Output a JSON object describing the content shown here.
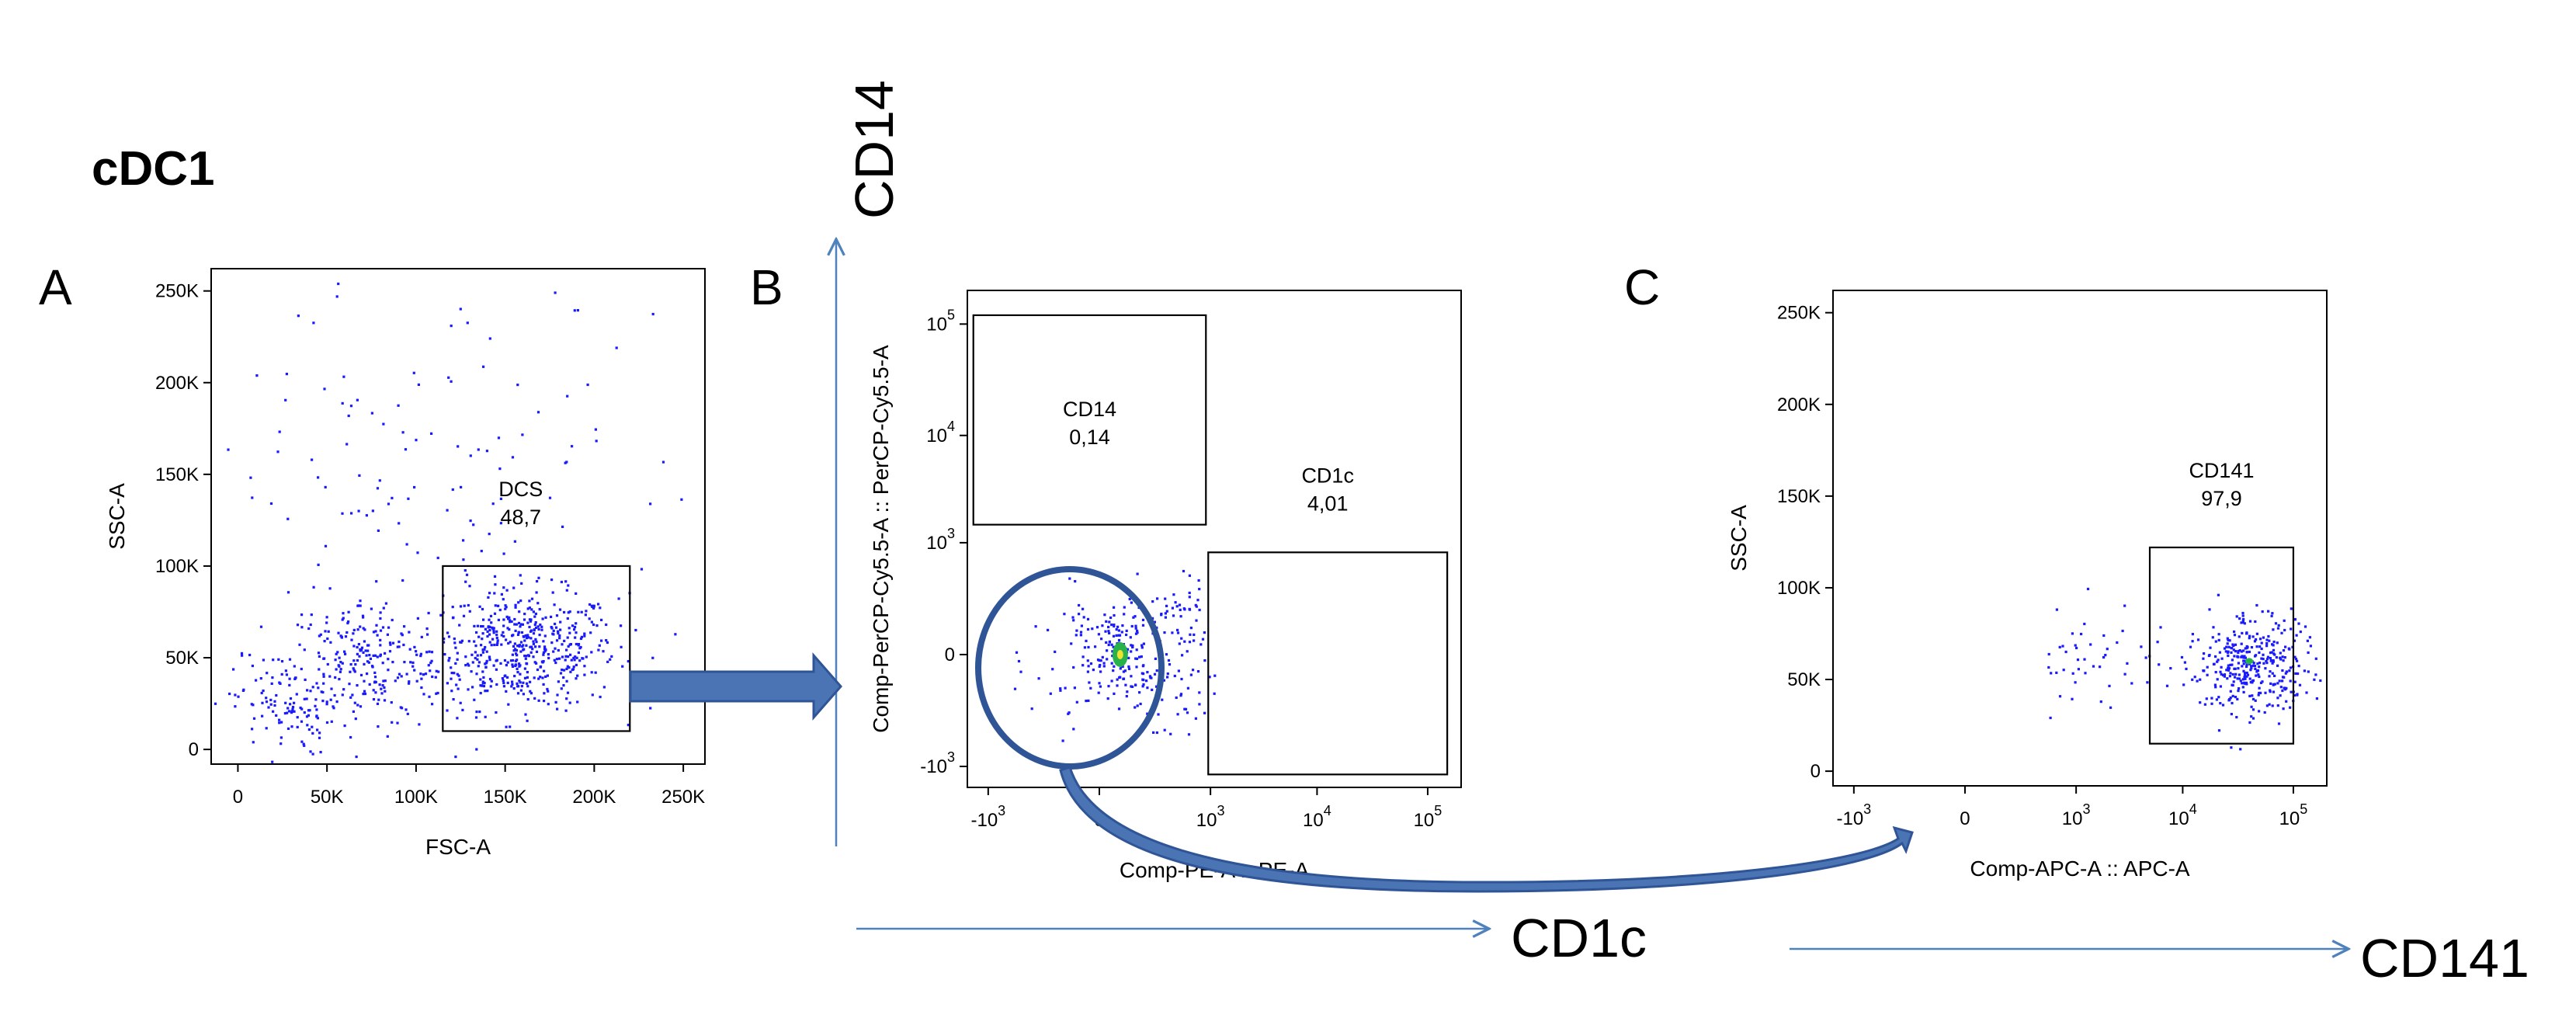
{
  "figure_title": "cDC1",
  "colors": {
    "dot": "#1a1aff",
    "dense": "#2ab24a",
    "core": "#f0e030",
    "arrow_fill": "#4a74b4",
    "arrow_stroke": "#2f5597",
    "axis_arrow": "#4f81bd",
    "circle": "#2f5597"
  },
  "big_axis_labels": {
    "cd14": "CD14",
    "cd1c": "CD1c",
    "cd141": "CD141"
  },
  "chart_data": [
    {
      "panel_letter": "A",
      "type": "scatter",
      "xlabel": "FSC-A",
      "ylabel": "SSC-A",
      "xlim": [
        -15000,
        262144
      ],
      "ylim": [
        -8000,
        262144
      ],
      "x_ticks": [
        {
          "v": 0,
          "label": "0"
        },
        {
          "v": 50000,
          "label": "50K"
        },
        {
          "v": 100000,
          "label": "100K"
        },
        {
          "v": 150000,
          "label": "150K"
        },
        {
          "v": 200000,
          "label": "200K"
        },
        {
          "v": 250000,
          "label": "250K"
        }
      ],
      "y_ticks": [
        {
          "v": 0,
          "label": "0"
        },
        {
          "v": 50000,
          "label": "50K"
        },
        {
          "v": 100000,
          "label": "100K"
        },
        {
          "v": 150000,
          "label": "150K"
        },
        {
          "v": 200000,
          "label": "200K"
        },
        {
          "v": 250000,
          "label": "250K"
        }
      ],
      "gates": [
        {
          "name": "DCS",
          "percent": "48,7",
          "x": [
            115000,
            220000
          ],
          "y": [
            10000,
            100000
          ]
        }
      ],
      "populations": [
        {
          "cx": 160000,
          "cy": 55000,
          "sx": 26000,
          "sy": 16000,
          "n": 520
        },
        {
          "cx": 70000,
          "cy": 48000,
          "sx": 22000,
          "sy": 18000,
          "n": 230
        },
        {
          "cx": 25000,
          "cy": 25000,
          "sx": 14000,
          "sy": 14000,
          "n": 110
        },
        {
          "cx": 110000,
          "cy": 140000,
          "sx": 80000,
          "sy": 60000,
          "n": 150
        }
      ]
    },
    {
      "panel_letter": "B",
      "type": "scatter",
      "xlabel": "Comp-PE-A :: PE-A",
      "ylabel": "Comp-PerCP-Cy5.5-A :: PerCP-Cy5.5-A",
      "scale": "biexponential",
      "xlim": [
        -1600,
        200000
      ],
      "ylim": [
        -1600,
        200000
      ],
      "x_ticks": [
        {
          "v": -1000,
          "base": "-10",
          "exp": "3"
        },
        {
          "v": 0,
          "base": "0",
          "exp": ""
        },
        {
          "v": 1000,
          "base": "10",
          "exp": "3"
        },
        {
          "v": 10000,
          "base": "10",
          "exp": "4"
        },
        {
          "v": 100000,
          "base": "10",
          "exp": "5"
        }
      ],
      "y_ticks": [
        {
          "v": -1000,
          "base": "-10",
          "exp": "3"
        },
        {
          "v": 0,
          "base": "0",
          "exp": ""
        },
        {
          "v": 1000,
          "base": "10",
          "exp": "3"
        },
        {
          "v": 10000,
          "base": "10",
          "exp": "4"
        },
        {
          "v": 100000,
          "base": "10",
          "exp": "5"
        }
      ],
      "gates": [
        {
          "name": "CD14",
          "percent": "0,14",
          "x": [
            -1400,
            900
          ],
          "y": [
            1500,
            120000
          ]
        },
        {
          "name": "CD1c",
          "percent": "4,01",
          "x": [
            950,
            150000
          ],
          "y": [
            -1200,
            800
          ]
        }
      ],
      "populations": [
        {
          "cx": 50,
          "cy": 0,
          "sx": 60,
          "sy": 60,
          "n": 120
        },
        {
          "cx": 250,
          "cy": 0,
          "sx": 300,
          "sy": 180,
          "n": 180
        }
      ]
    },
    {
      "panel_letter": "C",
      "type": "scatter",
      "xlabel": "Comp-APC-A :: APC-A",
      "ylabel": "SSC-A",
      "scale": "biexponential x",
      "xlim": [
        -1600,
        200000
      ],
      "ylim": [
        -8000,
        262144
      ],
      "x_ticks": [
        {
          "v": -1000,
          "base": "-10",
          "exp": "3"
        },
        {
          "v": 0,
          "base": "0",
          "exp": ""
        },
        {
          "v": 1000,
          "base": "10",
          "exp": "3"
        },
        {
          "v": 10000,
          "base": "10",
          "exp": "4"
        },
        {
          "v": 100000,
          "base": "10",
          "exp": "5"
        }
      ],
      "y_ticks": [
        {
          "v": 0,
          "label": "0"
        },
        {
          "v": 50000,
          "label": "50K"
        },
        {
          "v": 100000,
          "label": "100K"
        },
        {
          "v": 150000,
          "label": "150K"
        },
        {
          "v": 200000,
          "label": "200K"
        },
        {
          "v": 250000,
          "label": "250K"
        }
      ],
      "gates": [
        {
          "name": "CD141",
          "percent": "97,9",
          "x": [
            5000,
            100000
          ],
          "y": [
            15000,
            122000
          ]
        }
      ],
      "populations": [
        {
          "cx": 40000,
          "cy": 60000,
          "sx": 0.28,
          "sy": 14000,
          "n": 420,
          "logx": true
        }
      ]
    }
  ]
}
